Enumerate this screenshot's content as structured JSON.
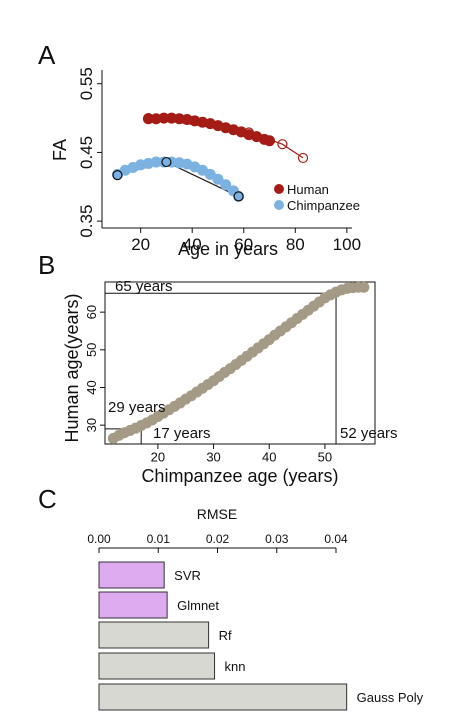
{
  "panels": {
    "a": {
      "letter": "A"
    },
    "b": {
      "letter": "B"
    },
    "c": {
      "letter": "C"
    }
  },
  "chart_data": [
    {
      "panel": "A",
      "type": "scatter",
      "xlabel": "Age in years",
      "ylabel": "FA",
      "xlim": [
        5,
        102
      ],
      "ylim": [
        0.34,
        0.57
      ],
      "xticks": [
        "20",
        "40",
        "60",
        "80",
        "100"
      ],
      "yticks": [
        "0.35",
        "0.45",
        "0.55"
      ],
      "legend": {
        "placement": "bottom-right"
      },
      "series": [
        {
          "name": "Human",
          "color": "#a51c17",
          "x": [
            23,
            26,
            29,
            32,
            35,
            38,
            41,
            44,
            47,
            50,
            53,
            56,
            59,
            62,
            65,
            68,
            70
          ],
          "y": [
            0.499,
            0.499,
            0.5,
            0.5,
            0.499,
            0.498,
            0.496,
            0.494,
            0.492,
            0.489,
            0.486,
            0.483,
            0.48,
            0.476,
            0.473,
            0.469,
            0.467
          ],
          "fit_x": [
            23,
            83
          ],
          "fit_hollow_x": [
            23,
            62,
            75,
            83
          ],
          "fit_hollow_y": [
            0.5,
            0.479,
            0.462,
            0.442
          ]
        },
        {
          "name": "Chimpanzee",
          "color": "#7bb2e2",
          "x": [
            11,
            14,
            17,
            20,
            23,
            26,
            29,
            32,
            35,
            38,
            41,
            44,
            47,
            50,
            53,
            56,
            58
          ],
          "y": [
            0.418,
            0.424,
            0.428,
            0.432,
            0.434,
            0.436,
            0.436,
            0.436,
            0.435,
            0.433,
            0.429,
            0.424,
            0.418,
            0.411,
            0.403,
            0.394,
            0.386
          ],
          "fit_hollow_x": [
            11,
            30,
            58
          ],
          "fit_hollow_y": [
            0.417,
            0.436,
            0.386
          ]
        }
      ]
    },
    {
      "panel": "B",
      "type": "scatter",
      "xlabel": "Chimpanzee age (years)",
      "ylabel": "Human age(years)",
      "xlim": [
        10.5,
        59
      ],
      "ylim": [
        25,
        68
      ],
      "xticks": [
        "20",
        "30",
        "40",
        "50"
      ],
      "yticks": [
        "30",
        "40",
        "50",
        "60"
      ],
      "color": "#a49a85",
      "x": [
        12,
        13,
        14,
        15,
        16,
        17,
        18,
        19,
        20,
        21,
        22,
        23,
        24,
        25,
        26,
        27,
        28,
        29,
        30,
        31,
        32,
        33,
        34,
        35,
        36,
        37,
        38,
        39,
        40,
        41,
        42,
        43,
        44,
        45,
        46,
        47,
        48,
        49,
        50,
        51,
        52,
        53,
        54,
        55,
        56,
        57
      ],
      "y": [
        26.5,
        27.3,
        28.0,
        28.6,
        29.2,
        29.9,
        30.6,
        31.4,
        32.3,
        33.2,
        34.1,
        35.0,
        35.9,
        36.9,
        37.8,
        38.8,
        39.8,
        40.8,
        41.8,
        42.9,
        44.0,
        45.0,
        46.1,
        47.2,
        48.3,
        49.4,
        50.5,
        51.6,
        52.7,
        53.9,
        55.0,
        56.1,
        57.2,
        58.3,
        59.4,
        60.5,
        61.6,
        62.7,
        63.8,
        64.6,
        65.3,
        65.9,
        66.3,
        66.5,
        66.6,
        66.6
      ],
      "annotations": [
        {
          "label": "65 years",
          "value": 65
        },
        {
          "label": "29 years",
          "value": 29
        },
        {
          "label": "17 years",
          "value": 17
        },
        {
          "label": "52 years",
          "value": 52
        }
      ]
    },
    {
      "panel": "C",
      "type": "bar",
      "orientation": "horizontal",
      "title": "RMSE",
      "xlim": [
        0,
        0.04
      ],
      "xticks": [
        "0.00",
        "0.01",
        "0.02",
        "0.03",
        "0.04"
      ],
      "categories": [
        "SVR",
        "Glmnet",
        "Rf",
        "knn",
        "Gauss Poly"
      ],
      "values": [
        0.011,
        0.0115,
        0.0185,
        0.0195,
        0.0418
      ],
      "colors": [
        "#deaaf0",
        "#deaaf0",
        "#d8d8d3",
        "#d8d8d3",
        "#d8d8d3"
      ]
    }
  ]
}
